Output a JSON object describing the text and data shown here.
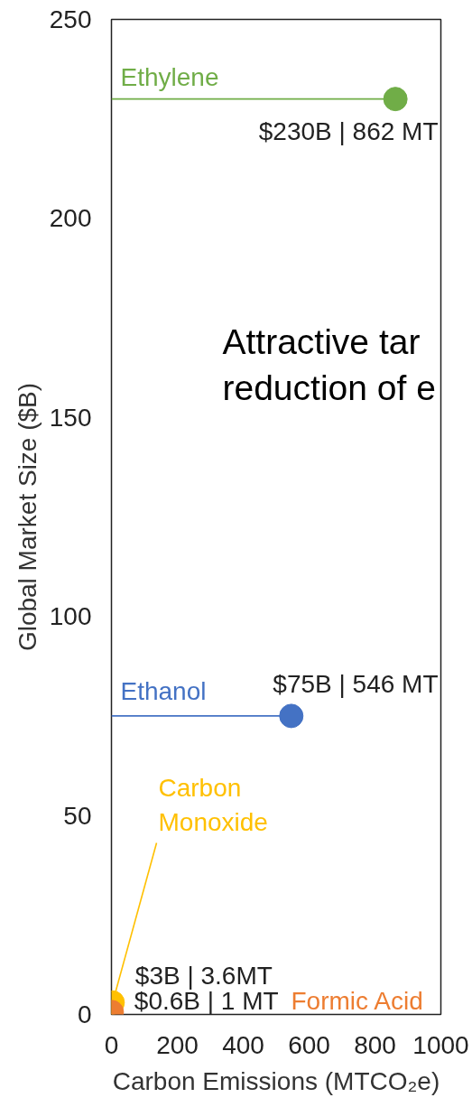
{
  "chart_data": {
    "type": "scatter",
    "xlabel": "Carbon Emissions (MTCO₂e)",
    "ylabel": "Global Market Size ($B)",
    "annotations": [
      "Attractive tar\nreduction of e"
    ],
    "xlim": [
      0,
      1000
    ],
    "ylim": [
      0,
      250
    ],
    "xticks": [
      0,
      200,
      400,
      600,
      800,
      1000
    ],
    "yticks": [
      0,
      50,
      100,
      150,
      200,
      250
    ],
    "marker": "circle",
    "series": [
      {
        "name": "Ethylene",
        "color": "#70ad47",
        "x": [
          862
        ],
        "values": [
          230
        ],
        "value_labels": [
          "$230B | 862 MT"
        ]
      },
      {
        "name": "Ethanol",
        "color": "#4472c4",
        "x": [
          546
        ],
        "values": [
          75
        ],
        "value_labels": [
          "$75B | 546 MT"
        ]
      },
      {
        "name": "Carbon Monoxide",
        "color": "#ffc000",
        "x": [
          3.6
        ],
        "values": [
          3
        ],
        "value_labels": [
          "$3B | 3.6MT"
        ]
      },
      {
        "name": "Formic Acid",
        "color": "#ed7d31",
        "x": [
          1
        ],
        "values": [
          0.6
        ],
        "value_labels": [
          "$0.6B | 1 MT"
        ]
      }
    ]
  }
}
